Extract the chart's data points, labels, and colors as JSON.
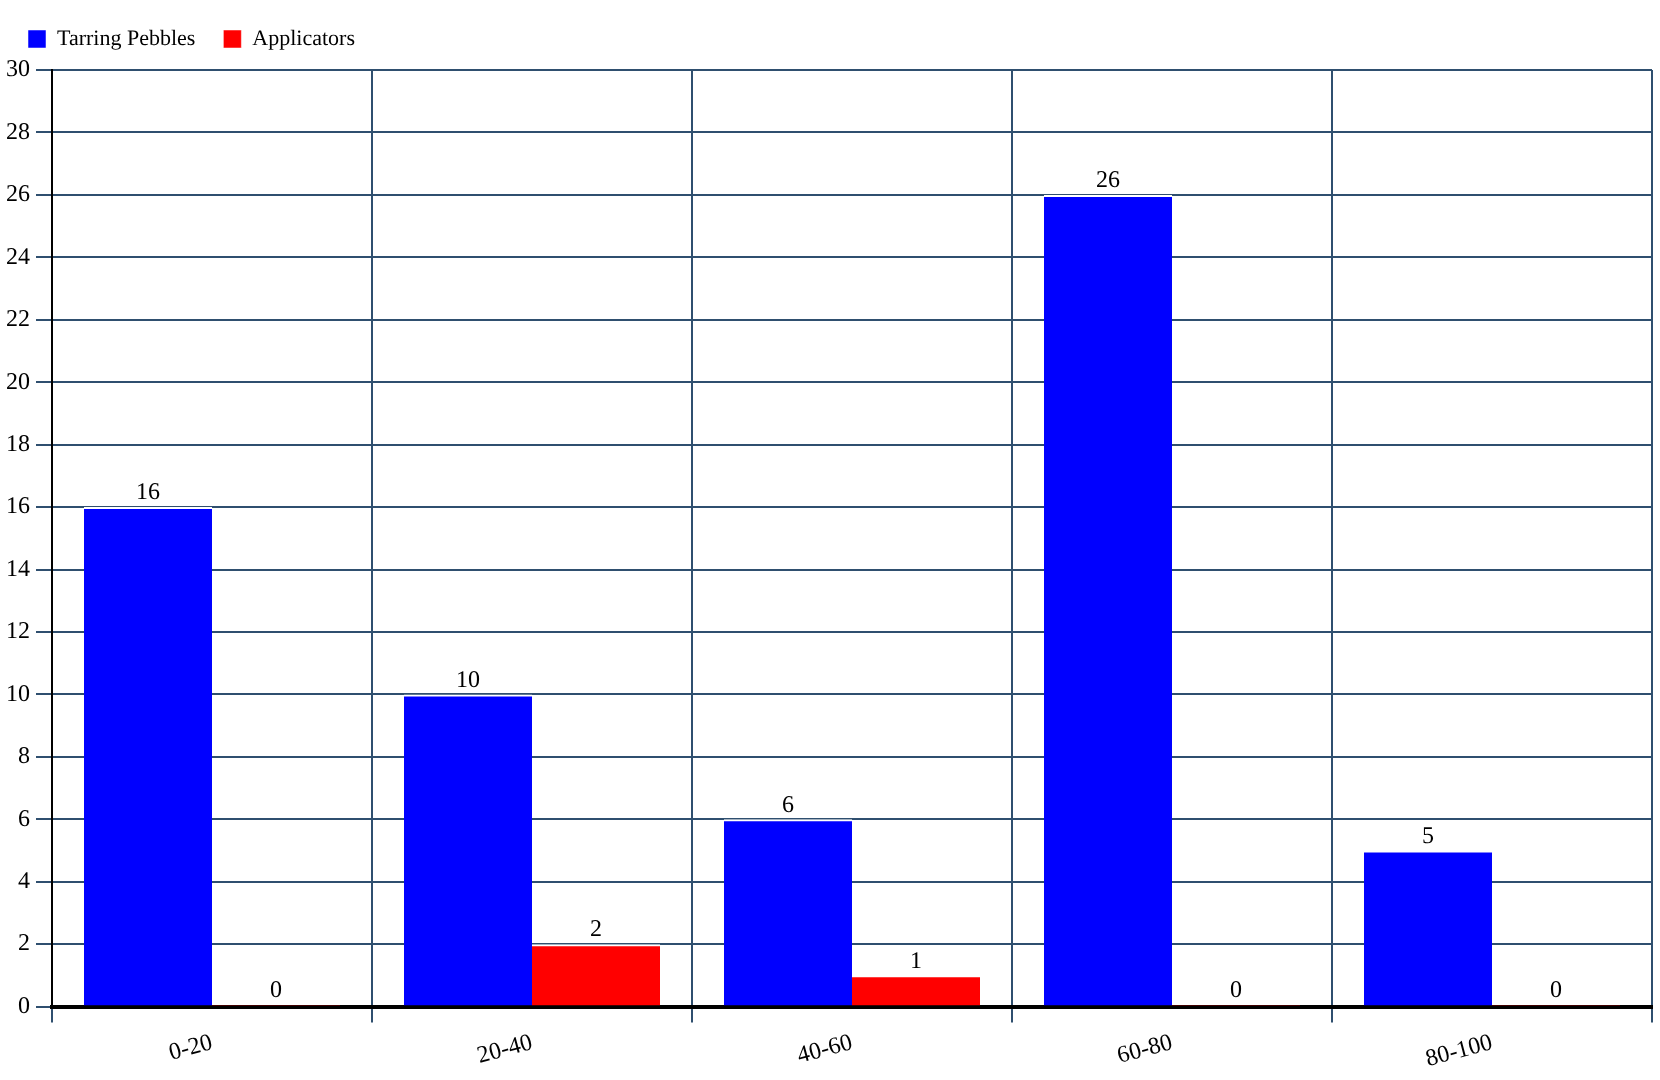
{
  "chart_data": {
    "type": "bar",
    "categories": [
      "0-20",
      "20-40",
      "40-60",
      "60-80",
      "80-100"
    ],
    "series": [
      {
        "name": "Tarring Pebbles",
        "color": "#0000ff",
        "values": [
          16,
          10,
          6,
          26,
          5
        ]
      },
      {
        "name": "Applicators",
        "color": "#ff0000",
        "values": [
          0,
          2,
          1,
          0,
          0
        ]
      }
    ],
    "ylim": [
      0,
      30
    ],
    "yticks": [
      0,
      2,
      4,
      6,
      8,
      10,
      12,
      14,
      16,
      18,
      20,
      22,
      24,
      26,
      28,
      30
    ],
    "grid": true,
    "legend": "top left",
    "data_labels": true
  }
}
